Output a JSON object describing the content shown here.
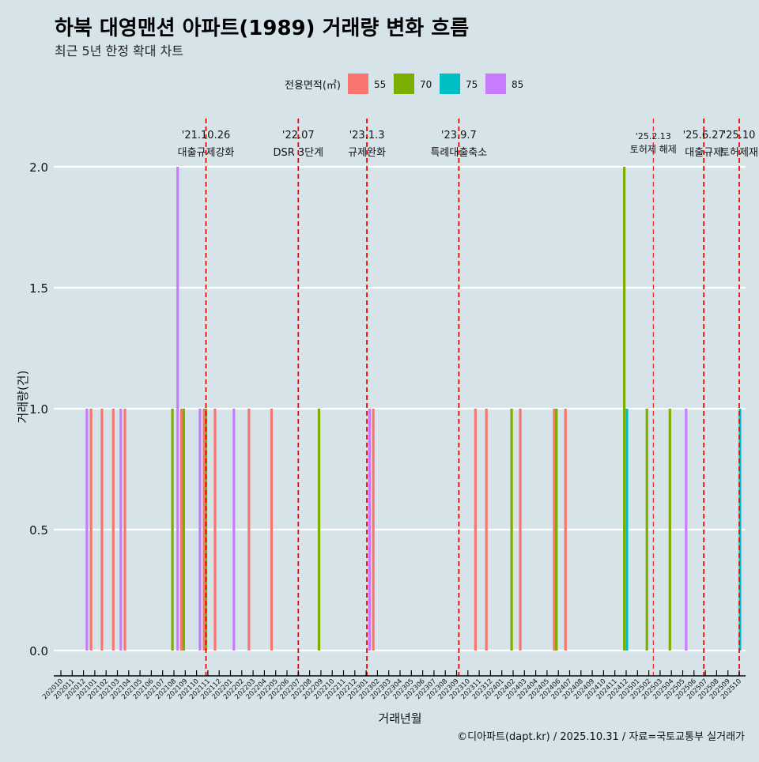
{
  "chart_data": {
    "type": "bar",
    "title": "하북 대영맨션 아파트(1989) 거래량 변화 흐름",
    "subtitle": "최근 5년 한정 확대 차트",
    "xlabel": "거래년월",
    "ylabel": "거래량(건)",
    "ylim": [
      0,
      2
    ],
    "yticks": [
      "0.0",
      "0.5",
      "1.0",
      "1.5",
      "2.0"
    ],
    "yticks_values": [
      0,
      0.5,
      1.0,
      1.5,
      2.0
    ],
    "grid": true,
    "legend": {
      "title": "전용면적(㎡)",
      "position": "top",
      "entries": [
        {
          "label": "55",
          "color": "#F8766D"
        },
        {
          "label": "70",
          "color": "#7CAE00"
        },
        {
          "label": "75",
          "color": "#00BFC4"
        },
        {
          "label": "85",
          "color": "#C77CFF"
        }
      ]
    },
    "xticks": [
      "202010",
      "202011",
      "202012",
      "202101",
      "202102",
      "202103",
      "202104",
      "202105",
      "202106",
      "202107",
      "202108",
      "202109",
      "202110",
      "202111",
      "202112",
      "202201",
      "202202",
      "202203",
      "202204",
      "202205",
      "202206",
      "202207",
      "202208",
      "202209",
      "202210",
      "202211",
      "202212",
      "202301",
      "202302",
      "202303",
      "202304",
      "202305",
      "202306",
      "202307",
      "202308",
      "202309",
      "202310",
      "202311",
      "202312",
      "202401",
      "202402",
      "202403",
      "202404",
      "202405",
      "202406",
      "202407",
      "202408",
      "202409",
      "202410",
      "202411",
      "202412",
      "202501",
      "202502",
      "202503",
      "202504",
      "202505",
      "202506",
      "202507",
      "202508",
      "202509",
      "202510"
    ],
    "bars": [
      {
        "date": "2020-12-10",
        "area": "85",
        "value": 1
      },
      {
        "date": "2020-12-21",
        "area": "55",
        "value": 1
      },
      {
        "date": "2021-01-20",
        "area": "55",
        "value": 1
      },
      {
        "date": "2021-02-20",
        "area": "55",
        "value": 1
      },
      {
        "date": "2021-03-10",
        "area": "85",
        "value": 1
      },
      {
        "date": "2021-03-21",
        "area": "55",
        "value": 1
      },
      {
        "date": "2021-07-27",
        "area": "70",
        "value": 1
      },
      {
        "date": "2021-08-11",
        "area": "85",
        "value": 2
      },
      {
        "date": "2021-08-21",
        "area": "55",
        "value": 1
      },
      {
        "date": "2021-08-27",
        "area": "70",
        "value": 1
      },
      {
        "date": "2021-10-10",
        "area": "85",
        "value": 1
      },
      {
        "date": "2021-10-21",
        "area": "55",
        "value": 1
      },
      {
        "date": "2021-10-26",
        "area": "70",
        "value": 1
      },
      {
        "date": "2021-11-20",
        "area": "55",
        "value": 1
      },
      {
        "date": "2022-01-10",
        "area": "85",
        "value": 1
      },
      {
        "date": "2022-02-20",
        "area": "55",
        "value": 1
      },
      {
        "date": "2022-04-20",
        "area": "55",
        "value": 1
      },
      {
        "date": "2022-08-26",
        "area": "70",
        "value": 1
      },
      {
        "date": "2023-01-10",
        "area": "85",
        "value": 1
      },
      {
        "date": "2023-01-20",
        "area": "55",
        "value": 1
      },
      {
        "date": "2023-10-21",
        "area": "55",
        "value": 1
      },
      {
        "date": "2023-11-20",
        "area": "55",
        "value": 1
      },
      {
        "date": "2024-01-27",
        "area": "70",
        "value": 1
      },
      {
        "date": "2024-02-20",
        "area": "55",
        "value": 1
      },
      {
        "date": "2024-05-20",
        "area": "55",
        "value": 1
      },
      {
        "date": "2024-05-26",
        "area": "70",
        "value": 1
      },
      {
        "date": "2024-06-20",
        "area": "55",
        "value": 1
      },
      {
        "date": "2024-11-26",
        "area": "70",
        "value": 2
      },
      {
        "date": "2024-12-03",
        "area": "75",
        "value": 1
      },
      {
        "date": "2025-01-26",
        "area": "70",
        "value": 1
      },
      {
        "date": "2025-03-27",
        "area": "70",
        "value": 1
      },
      {
        "date": "2025-05-10",
        "area": "85",
        "value": 1
      },
      {
        "date": "2025-10-03",
        "area": "75",
        "value": 1
      }
    ],
    "events": [
      {
        "date": "2021-10-26",
        "label_date": "'21.10.26",
        "label": "대출규제강화"
      },
      {
        "date": "2022-07-01",
        "label_date": "'22.07",
        "label": "DSR 3단계"
      },
      {
        "date": "2023-01-03",
        "label_date": "'23.1.3",
        "label": "규제완화"
      },
      {
        "date": "2023-09-07",
        "label_date": "'23.9.7",
        "label": "특례대출축소"
      },
      {
        "date": "2025-02-13",
        "label_date": "'25.2.13",
        "label": "토허제 해제"
      },
      {
        "date": "2025-06-27",
        "label_date": "'25.6.27",
        "label": "대출규제"
      },
      {
        "date": "2025-10-01",
        "label_date": "'25.10",
        "label": "토허제재"
      }
    ],
    "event_line_color": "#FF0000",
    "caption": "©디아파트(dapt.kr) / 2025.10.31 / 자료=국토교통부 실거래가"
  }
}
